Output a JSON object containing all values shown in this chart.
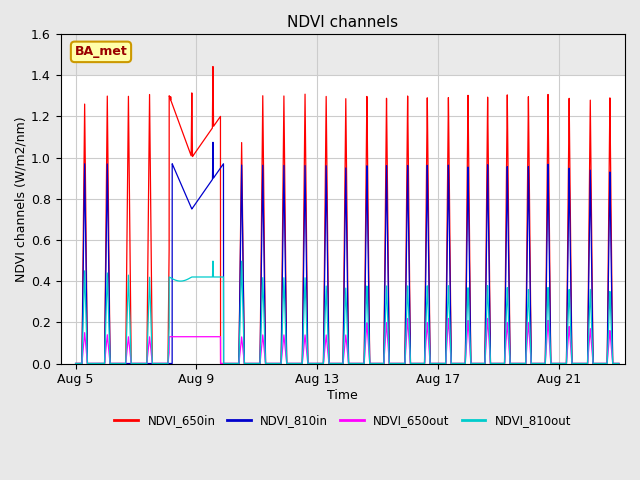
{
  "title": "NDVI channels",
  "xlabel": "Time",
  "ylabel": "NDVI channels (W/m2/nm)",
  "ylim": [
    0.0,
    1.6
  ],
  "annotation_text": "BA_met",
  "bg_color": "#e8e8e8",
  "plot_bg_color": "#f0f0f0",
  "colors": {
    "NDVI_650in": "#ff0000",
    "NDVI_810in": "#0000cc",
    "NDVI_650out": "#ff00ff",
    "NDVI_810out": "#00cccc"
  },
  "legend_labels": [
    "NDVI_650in",
    "NDVI_810in",
    "NDVI_650out",
    "NDVI_810out"
  ],
  "xtick_labels": [
    "Aug 5",
    "Aug 9",
    "Aug 13",
    "Aug 17",
    "Aug 21"
  ],
  "xtick_offsets": [
    0,
    4,
    8,
    12,
    16
  ],
  "total_days": 18
}
